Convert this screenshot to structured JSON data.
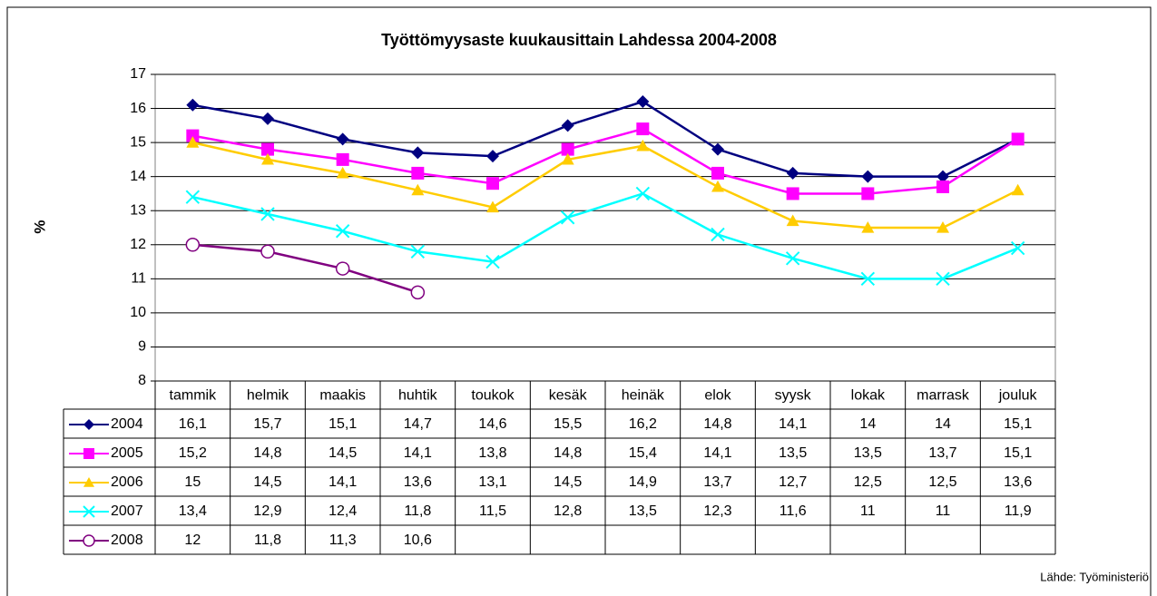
{
  "chart_data": {
    "type": "line",
    "title": "Työttömyysaste kuukausittain Lahdessa 2004-2008",
    "y_label": "%",
    "source": "Lähde: Työministeriö",
    "categories": [
      "tammik",
      "helmik",
      "maakis",
      "huhtik",
      "toukok",
      "kesäk",
      "heinäk",
      "elok",
      "syysk",
      "lokak",
      "marrask",
      "jouluk"
    ],
    "ylim": [
      8,
      17
    ],
    "yticks": [
      8,
      9,
      10,
      11,
      12,
      13,
      14,
      15,
      16,
      17
    ],
    "grid": true,
    "series": [
      {
        "name": "2004",
        "color": "#000080",
        "marker": "diamond",
        "values": [
          16.1,
          15.7,
          15.1,
          14.7,
          14.6,
          15.5,
          16.2,
          14.8,
          14.1,
          14,
          14,
          15.1
        ],
        "value_labels": [
          "16,1",
          "15,7",
          "15,1",
          "14,7",
          "14,6",
          "15,5",
          "16,2",
          "14,8",
          "14,1",
          "14",
          "14",
          "15,1"
        ]
      },
      {
        "name": "2005",
        "color": "#ff00ff",
        "marker": "square",
        "values": [
          15.2,
          14.8,
          14.5,
          14.1,
          13.8,
          14.8,
          15.4,
          14.1,
          13.5,
          13.5,
          13.7,
          15.1
        ],
        "value_labels": [
          "15,2",
          "14,8",
          "14,5",
          "14,1",
          "13,8",
          "14,8",
          "15,4",
          "14,1",
          "13,5",
          "13,5",
          "13,7",
          "15,1"
        ]
      },
      {
        "name": "2006",
        "color": "#ffcc00",
        "marker": "triangle",
        "values": [
          15,
          14.5,
          14.1,
          13.6,
          13.1,
          14.5,
          14.9,
          13.7,
          12.7,
          12.5,
          12.5,
          13.6
        ],
        "value_labels": [
          "15",
          "14,5",
          "14,1",
          "13,6",
          "13,1",
          "14,5",
          "14,9",
          "13,7",
          "12,7",
          "12,5",
          "12,5",
          "13,6"
        ]
      },
      {
        "name": "2007",
        "color": "#00ffff",
        "marker": "x",
        "values": [
          13.4,
          12.9,
          12.4,
          11.8,
          11.5,
          12.8,
          13.5,
          12.3,
          11.6,
          11,
          11,
          11.9
        ],
        "value_labels": [
          "13,4",
          "12,9",
          "12,4",
          "11,8",
          "11,5",
          "12,8",
          "13,5",
          "12,3",
          "11,6",
          "11",
          "11",
          "11,9"
        ]
      },
      {
        "name": "2008",
        "color": "#800080",
        "marker": "circle",
        "values": [
          12,
          11.8,
          11.3,
          10.6,
          null,
          null,
          null,
          null,
          null,
          null,
          null,
          null
        ],
        "value_labels": [
          "12",
          "11,8",
          "11,3",
          "10,6",
          null,
          null,
          null,
          null,
          null,
          null,
          null,
          null
        ]
      }
    ]
  }
}
